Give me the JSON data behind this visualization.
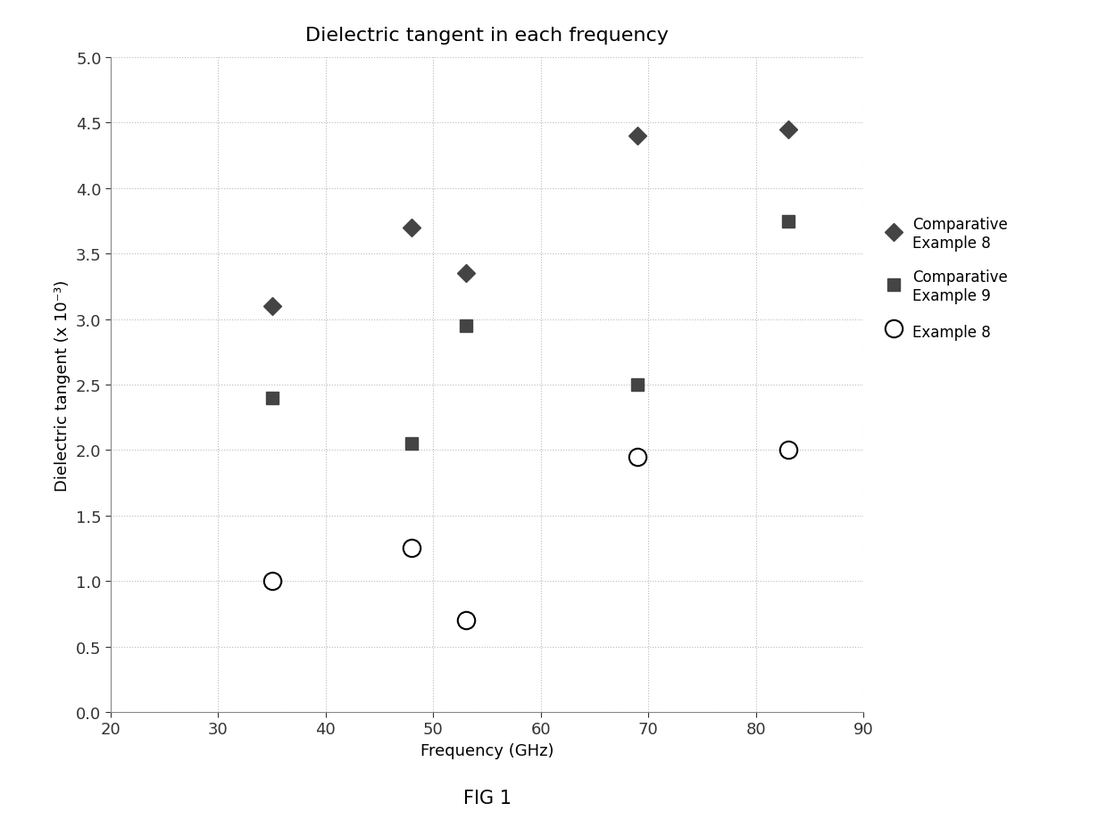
{
  "title": "Dielectric tangent in each frequency",
  "xlabel": "Frequency (GHz)",
  "ylabel": "Dielectric tangent (x 10⁻³)",
  "figcaption": "FIG 1",
  "xlim": [
    20,
    90
  ],
  "ylim": [
    0.0,
    5.0
  ],
  "xticks": [
    20,
    30,
    40,
    50,
    60,
    70,
    80,
    90
  ],
  "yticks": [
    0.0,
    0.5,
    1.0,
    1.5,
    2.0,
    2.5,
    3.0,
    3.5,
    4.0,
    4.5,
    5.0
  ],
  "series": [
    {
      "label": "Comparative\nExample 8",
      "x": [
        35,
        48,
        53,
        69,
        83
      ],
      "y": [
        3.1,
        3.7,
        3.35,
        4.4,
        4.45
      ],
      "marker": "D",
      "color": "#444444",
      "facecolor": "#444444",
      "markersize": 10,
      "linewidth": 0
    },
    {
      "label": "Comparative\nExample 9",
      "x": [
        35,
        48,
        53,
        69,
        83
      ],
      "y": [
        2.4,
        2.05,
        2.95,
        2.5,
        3.75
      ],
      "marker": "s",
      "color": "#444444",
      "facecolor": "#444444",
      "markersize": 10,
      "linewidth": 0
    },
    {
      "label": "Example 8",
      "x": [
        35,
        48,
        53,
        69,
        83
      ],
      "y": [
        1.0,
        1.25,
        0.7,
        1.95,
        2.0
      ],
      "marker": "o",
      "color": "#000000",
      "facecolor": "white",
      "markersize": 14,
      "linewidth": 2.0
    }
  ],
  "background_color": "#ffffff",
  "grid_color": "#bbbbbb",
  "grid_linestyle": ":",
  "title_fontsize": 16,
  "label_fontsize": 13,
  "tick_fontsize": 13,
  "legend_fontsize": 12,
  "caption_fontsize": 15
}
